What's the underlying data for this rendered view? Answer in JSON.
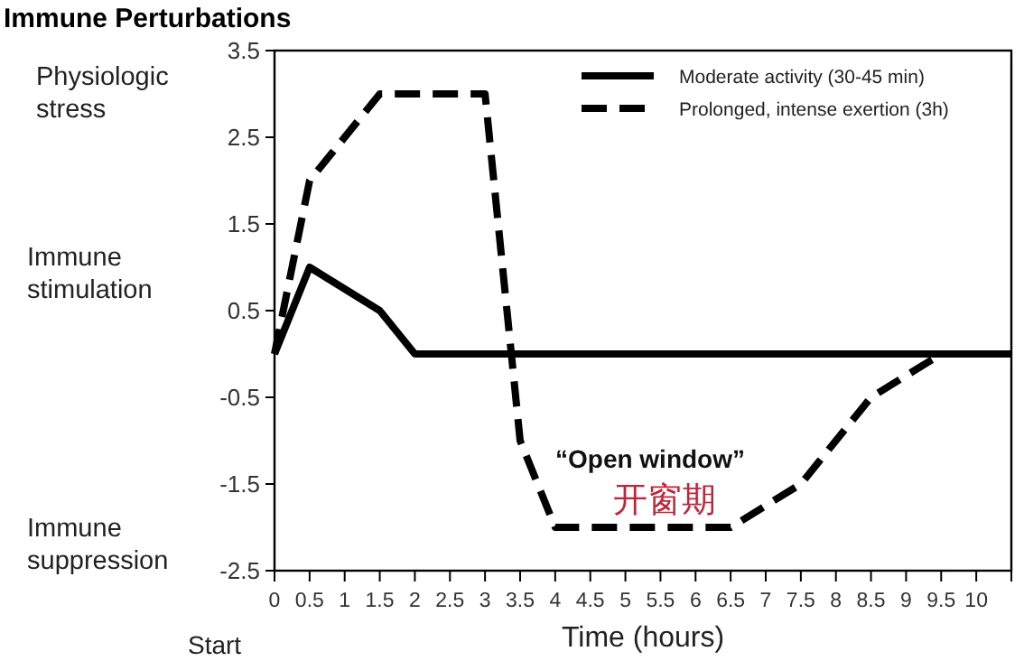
{
  "chart_data": {
    "type": "line",
    "title": "Immune Perturbations",
    "xlabel": "Time (hours)",
    "x": [
      0,
      0.5,
      1.5,
      2,
      3,
      3.5,
      4,
      6.5,
      7.5,
      8.5,
      9.5,
      10.5
    ],
    "series": [
      {
        "name": "Moderate activity (30-45 min)",
        "color": "#000000",
        "line_style": "solid",
        "values": [
          0,
          1,
          0.5,
          0,
          0,
          0,
          0,
          0,
          0,
          0,
          0,
          0
        ]
      },
      {
        "name": "Prolonged, intense exertion (3h)",
        "color": "#000000",
        "line_style": "dashed",
        "values": [
          0,
          2,
          3,
          3,
          3,
          -1,
          -2,
          -2,
          -1.5,
          -0.5,
          0,
          null
        ]
      }
    ],
    "xlim": [
      0,
      10.5
    ],
    "ylim": [
      -2.5,
      3.5
    ],
    "xticks": [
      0,
      0.5,
      1,
      1.5,
      2,
      2.5,
      3,
      3.5,
      4,
      4.5,
      5,
      5.5,
      6,
      6.5,
      7,
      7.5,
      8,
      8.5,
      9,
      9.5,
      10,
      {
        "value": 10.5,
        "label": null
      }
    ],
    "yticks": [
      3.5,
      2.5,
      1.5,
      0.5,
      -0.5,
      -1.5,
      -2.5
    ],
    "legend": "top right",
    "grid": false,
    "annotations": [
      "Physiologic stress",
      "Immune stimulation",
      "Immune suppression",
      "Start",
      "“Open window”",
      "开窗期"
    ]
  }
}
